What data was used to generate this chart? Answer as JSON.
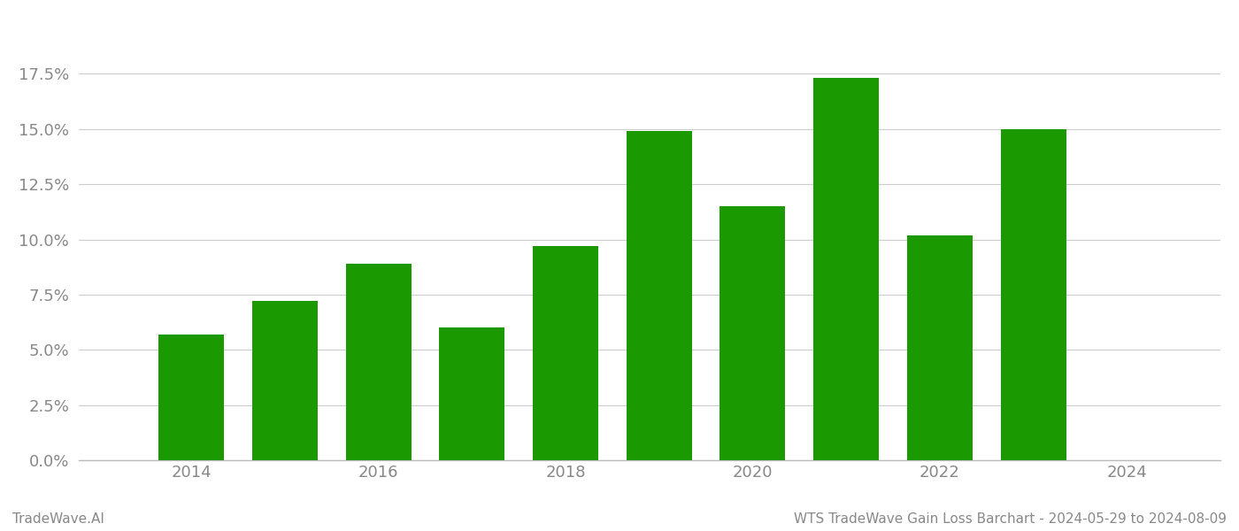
{
  "years": [
    2014,
    2015,
    2016,
    2017,
    2018,
    2019,
    2020,
    2021,
    2022,
    2023
  ],
  "values": [
    0.057,
    0.072,
    0.089,
    0.06,
    0.097,
    0.149,
    0.115,
    0.173,
    0.102,
    0.15
  ],
  "bar_color": "#1a9a00",
  "ylim": [
    0,
    0.2
  ],
  "yticks": [
    0.0,
    0.025,
    0.05,
    0.075,
    0.1,
    0.125,
    0.15,
    0.175
  ],
  "xticks": [
    2014,
    2016,
    2018,
    2020,
    2022,
    2024
  ],
  "xlim": [
    2012.8,
    2025.0
  ],
  "background_color": "#ffffff",
  "grid_color": "#cccccc",
  "footer_left": "TradeWave.AI",
  "footer_right": "WTS TradeWave Gain Loss Barchart - 2024-05-29 to 2024-08-09",
  "tick_color": "#888888",
  "spine_color": "#bbbbbb",
  "bar_width": 0.7,
  "tick_fontsize": 13,
  "footer_fontsize": 11
}
